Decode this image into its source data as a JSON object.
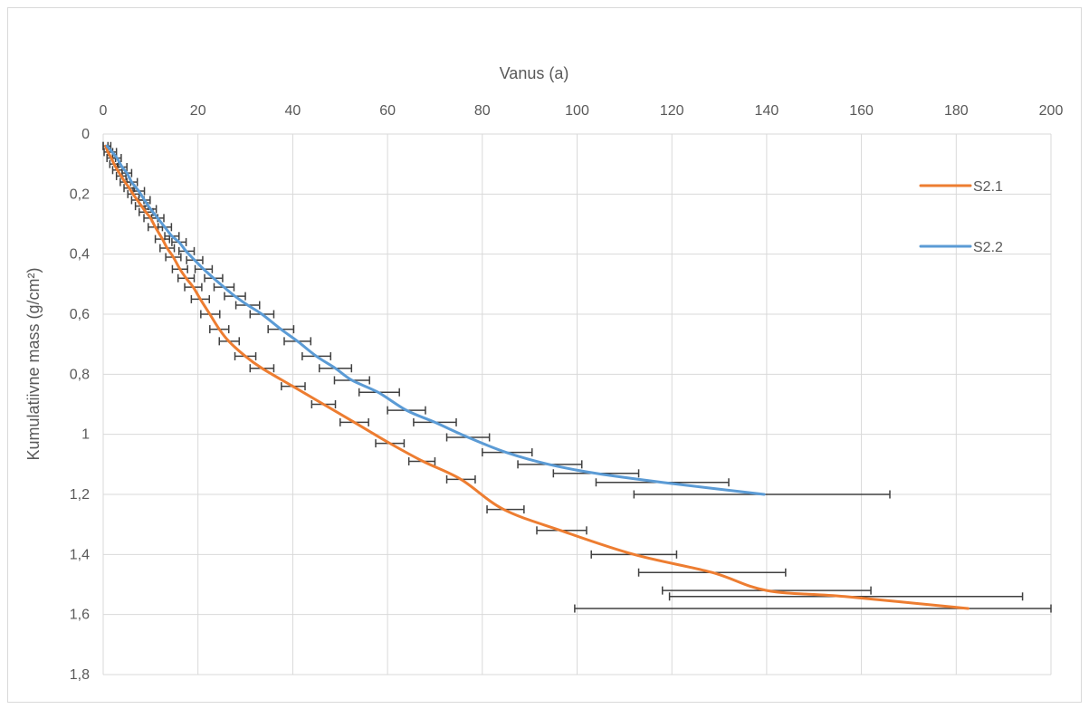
{
  "chart_data": {
    "type": "line",
    "xlabel": "Vanus (a)",
    "ylabel": "Kumulatiivne mass (g/cm²)",
    "x_axis_position": "top",
    "y_axis_reversed": true,
    "xlim": [
      0,
      200
    ],
    "ylim": [
      0,
      1.8
    ],
    "x_ticks": [
      "0",
      "20",
      "40",
      "60",
      "80",
      "100",
      "120",
      "140",
      "160",
      "180",
      "200"
    ],
    "y_ticks": [
      "0",
      "0,2",
      "0,4",
      "0,6",
      "0,8",
      "1",
      "1,2",
      "1,4",
      "1,6",
      "1,8"
    ],
    "grid": true,
    "legend_position": "right",
    "series": [
      {
        "name": "S2.1",
        "color": "#ED7D31",
        "points": [
          {
            "x": 0.5,
            "y": 0.04,
            "err": [
              0,
              1
            ]
          },
          {
            "x": 1.0,
            "y": 0.06,
            "err": [
              0.2,
              2
            ]
          },
          {
            "x": 1.7,
            "y": 0.08,
            "err": [
              0.8,
              2.6
            ]
          },
          {
            "x": 2.3,
            "y": 0.1,
            "err": [
              1.4,
              3.2
            ]
          },
          {
            "x": 3.0,
            "y": 0.12,
            "err": [
              2,
              4
            ]
          },
          {
            "x": 3.8,
            "y": 0.14,
            "err": [
              2.8,
              4.8
            ]
          },
          {
            "x": 4.6,
            "y": 0.16,
            "err": [
              3.6,
              5.8
            ]
          },
          {
            "x": 5.5,
            "y": 0.18,
            "err": [
              4.4,
              6.6
            ]
          },
          {
            "x": 6.3,
            "y": 0.2,
            "err": [
              5.2,
              7.6
            ]
          },
          {
            "x": 7.2,
            "y": 0.22,
            "err": [
              6,
              8.6
            ]
          },
          {
            "x": 8.1,
            "y": 0.24,
            "err": [
              6.8,
              9.5
            ]
          },
          {
            "x": 9.0,
            "y": 0.26,
            "err": [
              7.6,
              10.5
            ]
          },
          {
            "x": 10.0,
            "y": 0.28,
            "err": [
              8.6,
              11.5
            ]
          },
          {
            "x": 11.0,
            "y": 0.31,
            "err": [
              9.5,
              12.5
            ]
          },
          {
            "x": 12.5,
            "y": 0.35,
            "err": [
              11,
              14
            ]
          },
          {
            "x": 13.5,
            "y": 0.38,
            "err": [
              12,
              15
            ]
          },
          {
            "x": 14.8,
            "y": 0.41,
            "err": [
              13.2,
              16.4
            ]
          },
          {
            "x": 16.2,
            "y": 0.45,
            "err": [
              14.6,
              17.8
            ]
          },
          {
            "x": 17.5,
            "y": 0.48,
            "err": [
              15.8,
              19.2
            ]
          },
          {
            "x": 19.0,
            "y": 0.51,
            "err": [
              17.2,
              20.8
            ]
          },
          {
            "x": 20.5,
            "y": 0.55,
            "err": [
              18.6,
              22.4
            ]
          },
          {
            "x": 22.5,
            "y": 0.6,
            "err": [
              20.6,
              24.6
            ]
          },
          {
            "x": 24.5,
            "y": 0.65,
            "err": [
              22.5,
              26.5
            ]
          },
          {
            "x": 26.5,
            "y": 0.69,
            "err": [
              24.5,
              28.7
            ]
          },
          {
            "x": 30.0,
            "y": 0.74,
            "err": [
              27.8,
              32.2
            ]
          },
          {
            "x": 33.5,
            "y": 0.78,
            "err": [
              31,
              36
            ]
          },
          {
            "x": 40.0,
            "y": 0.84,
            "err": [
              37.6,
              42.6
            ]
          },
          {
            "x": 46.5,
            "y": 0.9,
            "err": [
              44,
              49
            ]
          },
          {
            "x": 53.0,
            "y": 0.96,
            "err": [
              50,
              56
            ]
          },
          {
            "x": 60.5,
            "y": 1.03,
            "err": [
              57.5,
              63.5
            ]
          },
          {
            "x": 67.5,
            "y": 1.09,
            "err": [
              64.5,
              70
            ]
          },
          {
            "x": 75.5,
            "y": 1.15,
            "err": [
              72.5,
              78.5
            ]
          },
          {
            "x": 84.5,
            "y": 1.25,
            "err": [
              81,
              88.8
            ]
          },
          {
            "x": 96.5,
            "y": 1.32,
            "err": [
              91.5,
              102
            ]
          },
          {
            "x": 112.0,
            "y": 1.4,
            "err": [
              103,
              121
            ]
          },
          {
            "x": 128.5,
            "y": 1.46,
            "err": [
              113,
              144
            ]
          },
          {
            "x": 140.0,
            "y": 1.52,
            "err": [
              118,
              162
            ]
          },
          {
            "x": 156.5,
            "y": 1.54,
            "err": [
              119.5,
              194
            ]
          },
          {
            "x": 182.5,
            "y": 1.58,
            "err": [
              99.5,
              200
            ]
          }
        ]
      },
      {
        "name": "S2.2",
        "color": "#5B9BD5",
        "points": [
          {
            "x": 0.8,
            "y": 0.04,
            "err": [
              0,
              1.6
            ]
          },
          {
            "x": 1.9,
            "y": 0.06,
            "err": [
              1,
              2.8
            ]
          },
          {
            "x": 2.9,
            "y": 0.08,
            "err": [
              2,
              3.8
            ]
          },
          {
            "x": 4.0,
            "y": 0.11,
            "err": [
              3,
              5
            ]
          },
          {
            "x": 5.0,
            "y": 0.13,
            "err": [
              4,
              6
            ]
          },
          {
            "x": 6.0,
            "y": 0.16,
            "err": [
              5,
              7.2
            ]
          },
          {
            "x": 7.5,
            "y": 0.19,
            "err": [
              6.3,
              8.7
            ]
          },
          {
            "x": 8.7,
            "y": 0.22,
            "err": [
              7.5,
              9.9
            ]
          },
          {
            "x": 10.0,
            "y": 0.25,
            "err": [
              8.8,
              11.2
            ]
          },
          {
            "x": 11.5,
            "y": 0.28,
            "err": [
              10.2,
              12.8
            ]
          },
          {
            "x": 13.0,
            "y": 0.31,
            "err": [
              11.6,
              14.4
            ]
          },
          {
            "x": 14.5,
            "y": 0.34,
            "err": [
              13,
              16
            ]
          },
          {
            "x": 16.0,
            "y": 0.36,
            "err": [
              14.5,
              17.5
            ]
          },
          {
            "x": 17.5,
            "y": 0.39,
            "err": [
              16,
              19.2
            ]
          },
          {
            "x": 19.3,
            "y": 0.42,
            "err": [
              17.6,
              21
            ]
          },
          {
            "x": 21.2,
            "y": 0.45,
            "err": [
              19.4,
              23
            ]
          },
          {
            "x": 23.3,
            "y": 0.48,
            "err": [
              21.4,
              25.2
            ]
          },
          {
            "x": 25.5,
            "y": 0.51,
            "err": [
              23.4,
              27.6
            ]
          },
          {
            "x": 27.8,
            "y": 0.54,
            "err": [
              25.6,
              30
            ]
          },
          {
            "x": 30.5,
            "y": 0.57,
            "err": [
              28,
              33
            ]
          },
          {
            "x": 33.5,
            "y": 0.6,
            "err": [
              31,
              36
            ]
          },
          {
            "x": 37.5,
            "y": 0.65,
            "err": [
              34.8,
              40.2
            ]
          },
          {
            "x": 41.0,
            "y": 0.69,
            "err": [
              38.2,
              43.8
            ]
          },
          {
            "x": 45.0,
            "y": 0.74,
            "err": [
              42,
              48
            ]
          },
          {
            "x": 49.0,
            "y": 0.78,
            "err": [
              45.6,
              52.4
            ]
          },
          {
            "x": 52.5,
            "y": 0.82,
            "err": [
              48.8,
              56.2
            ]
          },
          {
            "x": 58.0,
            "y": 0.86,
            "err": [
              54,
              62.5
            ]
          },
          {
            "x": 64.0,
            "y": 0.92,
            "err": [
              60,
              68
            ]
          },
          {
            "x": 70.0,
            "y": 0.96,
            "err": [
              65.5,
              74.5
            ]
          },
          {
            "x": 77.0,
            "y": 1.01,
            "err": [
              72.5,
              81.5
            ]
          },
          {
            "x": 85.0,
            "y": 1.06,
            "err": [
              80,
              90.5
            ]
          },
          {
            "x": 94.0,
            "y": 1.1,
            "err": [
              87.5,
              101
            ]
          },
          {
            "x": 104.0,
            "y": 1.13,
            "err": [
              95,
              113
            ]
          },
          {
            "x": 118.0,
            "y": 1.16,
            "err": [
              104,
              132
            ]
          },
          {
            "x": 139.5,
            "y": 1.2,
            "err": [
              112,
              166
            ]
          }
        ]
      }
    ]
  }
}
